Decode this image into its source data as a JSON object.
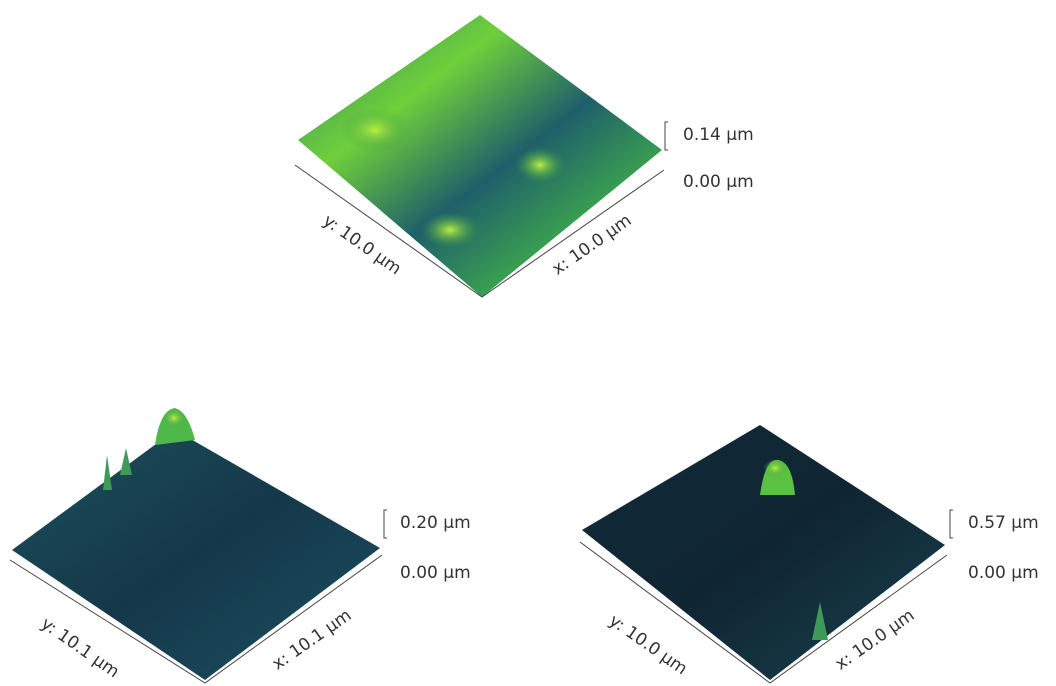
{
  "panels": [
    {
      "z_max": "0.14 µm",
      "z_min": "0.00 µm",
      "y_axis": "y: 10.0 µm",
      "x_axis": "x: 10.0 µm"
    },
    {
      "z_max": "0.20 µm",
      "z_min": "0.00 µm",
      "y_axis": "y: 10.1 µm",
      "x_axis": "x: 10.1 µm"
    },
    {
      "z_max": "0.57 µm",
      "z_min": "0.00 µm",
      "y_axis": "y: 10.0 µm",
      "x_axis": "x: 10.0 µm"
    }
  ]
}
